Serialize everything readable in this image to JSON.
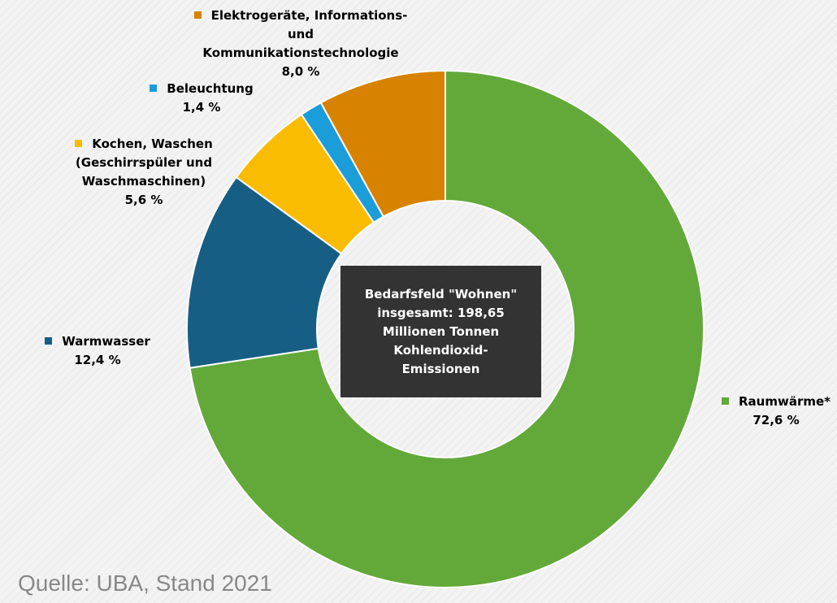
{
  "chart_data": {
    "type": "pie",
    "variant": "donut",
    "title": "",
    "center_text": "Bedarfsfeld \"Wohnen\"\ninsgesamt:  198,65\nMillionen Tonnen\nKohlendioxid-\nEmissionen",
    "slices": [
      {
        "label_lines": [
          "Raumwärme*"
        ],
        "value": 72.6,
        "value_text": "72,6 %",
        "color": "#62a93a"
      },
      {
        "label_lines": [
          "Warmwasser"
        ],
        "value": 12.4,
        "value_text": "12,4 %",
        "color": "#175e85"
      },
      {
        "label_lines": [
          "Kochen, Waschen",
          "(Geschirrspüler und",
          "Waschmaschinen)"
        ],
        "value": 5.6,
        "value_text": "5,6 %",
        "color": "#f9bc00"
      },
      {
        "label_lines": [
          "Beleuchtung"
        ],
        "value": 1.4,
        "value_text": "1,4 %",
        "color": "#1b9dd9"
      },
      {
        "label_lines": [
          "Elektrogeräte, Informations-",
          "und",
          "Kommunikationstechnologie"
        ],
        "value": 8.0,
        "value_text": "8,0 %",
        "color": "#d78200"
      }
    ],
    "legend": "labels beside slices"
  },
  "source_note": "Quelle: UBA, Stand 2021"
}
